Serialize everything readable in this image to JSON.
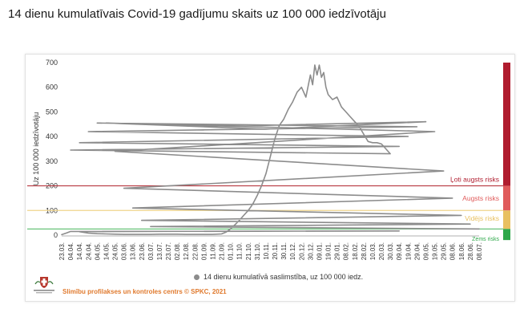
{
  "page": {
    "title": "14 dienu kumulatīvais Covid-19 gadījumu skaits uz 100 000 iedzīvotāju"
  },
  "footer": {
    "credit": "Slimību profilakses un kontroles centrs © SPKC, 2021",
    "logo_caption": "Slimību profilakses un kontroles centrs"
  },
  "colors": {
    "line": "#8c8c8c",
    "very_high": "#b01c2e",
    "high": "#e05b5b",
    "medium": "#e8c060",
    "low": "#2ea84a",
    "accent_orange": "#e07a2e"
  },
  "chart_data": {
    "type": "line",
    "title": "14 dienu kumulatīvais Covid-19 gadījumu skaits uz 100 000 iedzīvotāju",
    "ylabel": "Uz 100 000 iedzīvotāju",
    "xlabel": "",
    "ylim": [
      0,
      700
    ],
    "yticks": [
      0,
      100,
      200,
      300,
      400,
      500,
      600,
      700
    ],
    "grid": false,
    "x_tick_labels": [
      "23.03.",
      "04.04.",
      "14.04.",
      "24.04.",
      "04.05.",
      "14.05.",
      "24.05.",
      "03.06.",
      "13.06.",
      "23.06.",
      "03.07.",
      "13.07.",
      "23.07.",
      "02.08.",
      "12.08.",
      "22.08.",
      "01.09.",
      "11.09.",
      "21.09.",
      "01.10.",
      "11.10.",
      "21.10.",
      "31.10.",
      "10.11.",
      "20.11.",
      "30.11.",
      "10.12.",
      "20.12.",
      "30.12.",
      "09.01.",
      "19.01.",
      "29.01.",
      "08.02.",
      "18.02.",
      "28.02.",
      "10.03.",
      "20.03.",
      "30.03.",
      "09.04.",
      "19.04.",
      "29.04.",
      "09.05.",
      "19.05.",
      "29.05.",
      "08.06.",
      "18.06.",
      "28.06.",
      "08.07."
    ],
    "series": [
      {
        "name": "14 dienu kumulatīvā saslimstība, uz 100 000 iedz.",
        "x": [
          "23.03.",
          "29.03.",
          "04.04.",
          "09.04.",
          "14.04.",
          "24.04.",
          "04.05.",
          "14.05.",
          "24.05.",
          "03.06.",
          "13.06.",
          "23.06.",
          "03.07.",
          "13.07.",
          "23.07.",
          "02.08.",
          "12.08.",
          "22.08.",
          "01.09.",
          "11.09.",
          "21.09.",
          "26.09.",
          "01.10.",
          "06.10.",
          "11.10.",
          "16.10.",
          "21.10.",
          "26.10.",
          "31.10.",
          "05.11.",
          "10.11.",
          "15.11.",
          "20.11.",
          "25.11.",
          "30.11.",
          "05.12.",
          "10.12.",
          "15.12.",
          "20.12.",
          "25.12.",
          "30.12.",
          "02.01.",
          "05.01.",
          "07.01.",
          "09.01.",
          "11.01.",
          "13.01.",
          "15.01.",
          "19.01.",
          "24.01.",
          "29.01.",
          "03.02.",
          "08.02.",
          "13.02.",
          "18.02.",
          "23.02.",
          "28.02.",
          "05.03.",
          "10.03.",
          "15.03.",
          "20.03.",
          "25.03.",
          "30.03.",
          "04.04.",
          "09.04.",
          "14.04.",
          "19.04.",
          "24.04.",
          "29.04.",
          "04.05.",
          "07.05.",
          "09.05.",
          "12.05.",
          "14.05.",
          "19.05.",
          "24.05.",
          "29.05.",
          "03.06.",
          "08.06.",
          "13.06.",
          "18.06.",
          "23.06.",
          "28.06.",
          "03.07.",
          "08.07."
        ],
        "y": [
          2,
          8,
          15,
          17,
          14,
          8,
          6,
          5,
          4,
          3,
          3,
          3,
          3,
          4,
          4,
          4,
          3,
          3,
          3,
          3,
          5,
          12,
          25,
          42,
          60,
          80,
          100,
          125,
          160,
          200,
          250,
          320,
          390,
          445,
          470,
          510,
          540,
          580,
          600,
          560,
          650,
          610,
          690,
          650,
          690,
          640,
          660,
          600,
          570,
          550,
          560,
          520,
          500,
          480,
          460,
          440,
          410,
          380,
          375,
          375,
          370,
          350,
          330,
          345,
          360,
          375,
          400,
          420,
          440,
          455,
          445,
          460,
          430,
          455,
          420,
          340,
          260,
          190,
          150,
          110,
          80,
          60,
          45,
          35,
          25
        ]
      }
    ],
    "risk_levels": [
      {
        "label": "Ļoti augsts risks",
        "threshold": 200,
        "color": "#b01c2e"
      },
      {
        "label": "Augsts risks",
        "threshold": 100,
        "color": "#e05b5b"
      },
      {
        "label": "Vidējs risks",
        "threshold": 25,
        "color": "#e8c060"
      },
      {
        "label": "Zems risks",
        "threshold": 0,
        "color": "#2ea84a"
      }
    ],
    "legend_position": "bottom"
  }
}
